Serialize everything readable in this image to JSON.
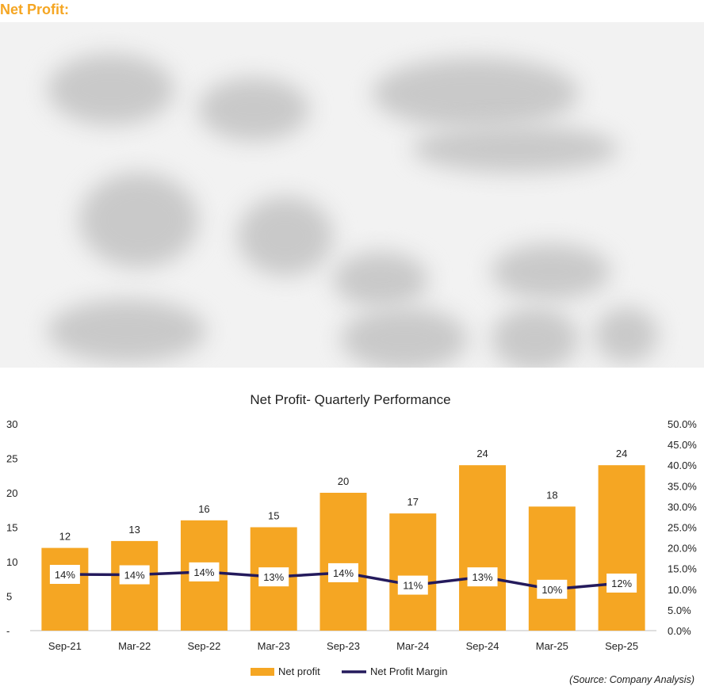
{
  "page": {
    "heading": "Net Profit:"
  },
  "chart_data": {
    "type": "bar",
    "title": "Net Profit- Quarterly Performance",
    "categories": [
      "Sep-21",
      "Mar-22",
      "Sep-22",
      "Mar-23",
      "Sep-23",
      "Mar-24",
      "Sep-24",
      "Mar-25",
      "Sep-25"
    ],
    "series": [
      {
        "name": "Net profit",
        "type": "bar",
        "axis": "left",
        "color": "#f5a623",
        "values": [
          12,
          13,
          16,
          15,
          20,
          17,
          24,
          18,
          24
        ],
        "labels": [
          "12",
          "13",
          "16",
          "15",
          "20",
          "17",
          "24",
          "18",
          "24"
        ]
      },
      {
        "name": "Net Profit Margin",
        "type": "line",
        "axis": "right",
        "color": "#241a5c",
        "values": [
          13.6,
          13.5,
          14.2,
          13.0,
          14.0,
          11.0,
          13.0,
          10.0,
          11.5
        ],
        "labels": [
          "14%",
          "14%",
          "14%",
          "13%",
          "14%",
          "11%",
          "13%",
          "10%",
          "12%"
        ]
      }
    ],
    "y_left": {
      "ylim": [
        0,
        30
      ],
      "ticks": [
        0,
        5,
        10,
        15,
        20,
        25,
        30
      ],
      "tick_labels": [
        "-",
        "5",
        "10",
        "15",
        "20",
        "25",
        "30"
      ]
    },
    "y_right": {
      "ylim": [
        0,
        50
      ],
      "ticks": [
        0,
        5,
        10,
        15,
        20,
        25,
        30,
        35,
        40,
        45,
        50
      ],
      "tick_labels": [
        "0.0%",
        "5.0%",
        "10.0%",
        "15.0%",
        "20.0%",
        "25.0%",
        "30.0%",
        "35.0%",
        "40.0%",
        "45.0%",
        "50.0%"
      ]
    },
    "grid": false,
    "legend": {
      "placement": "bottom-center",
      "entries": [
        "Net profit",
        "Net Profit Margin"
      ]
    },
    "source": "(Source: Company Analysis)"
  }
}
